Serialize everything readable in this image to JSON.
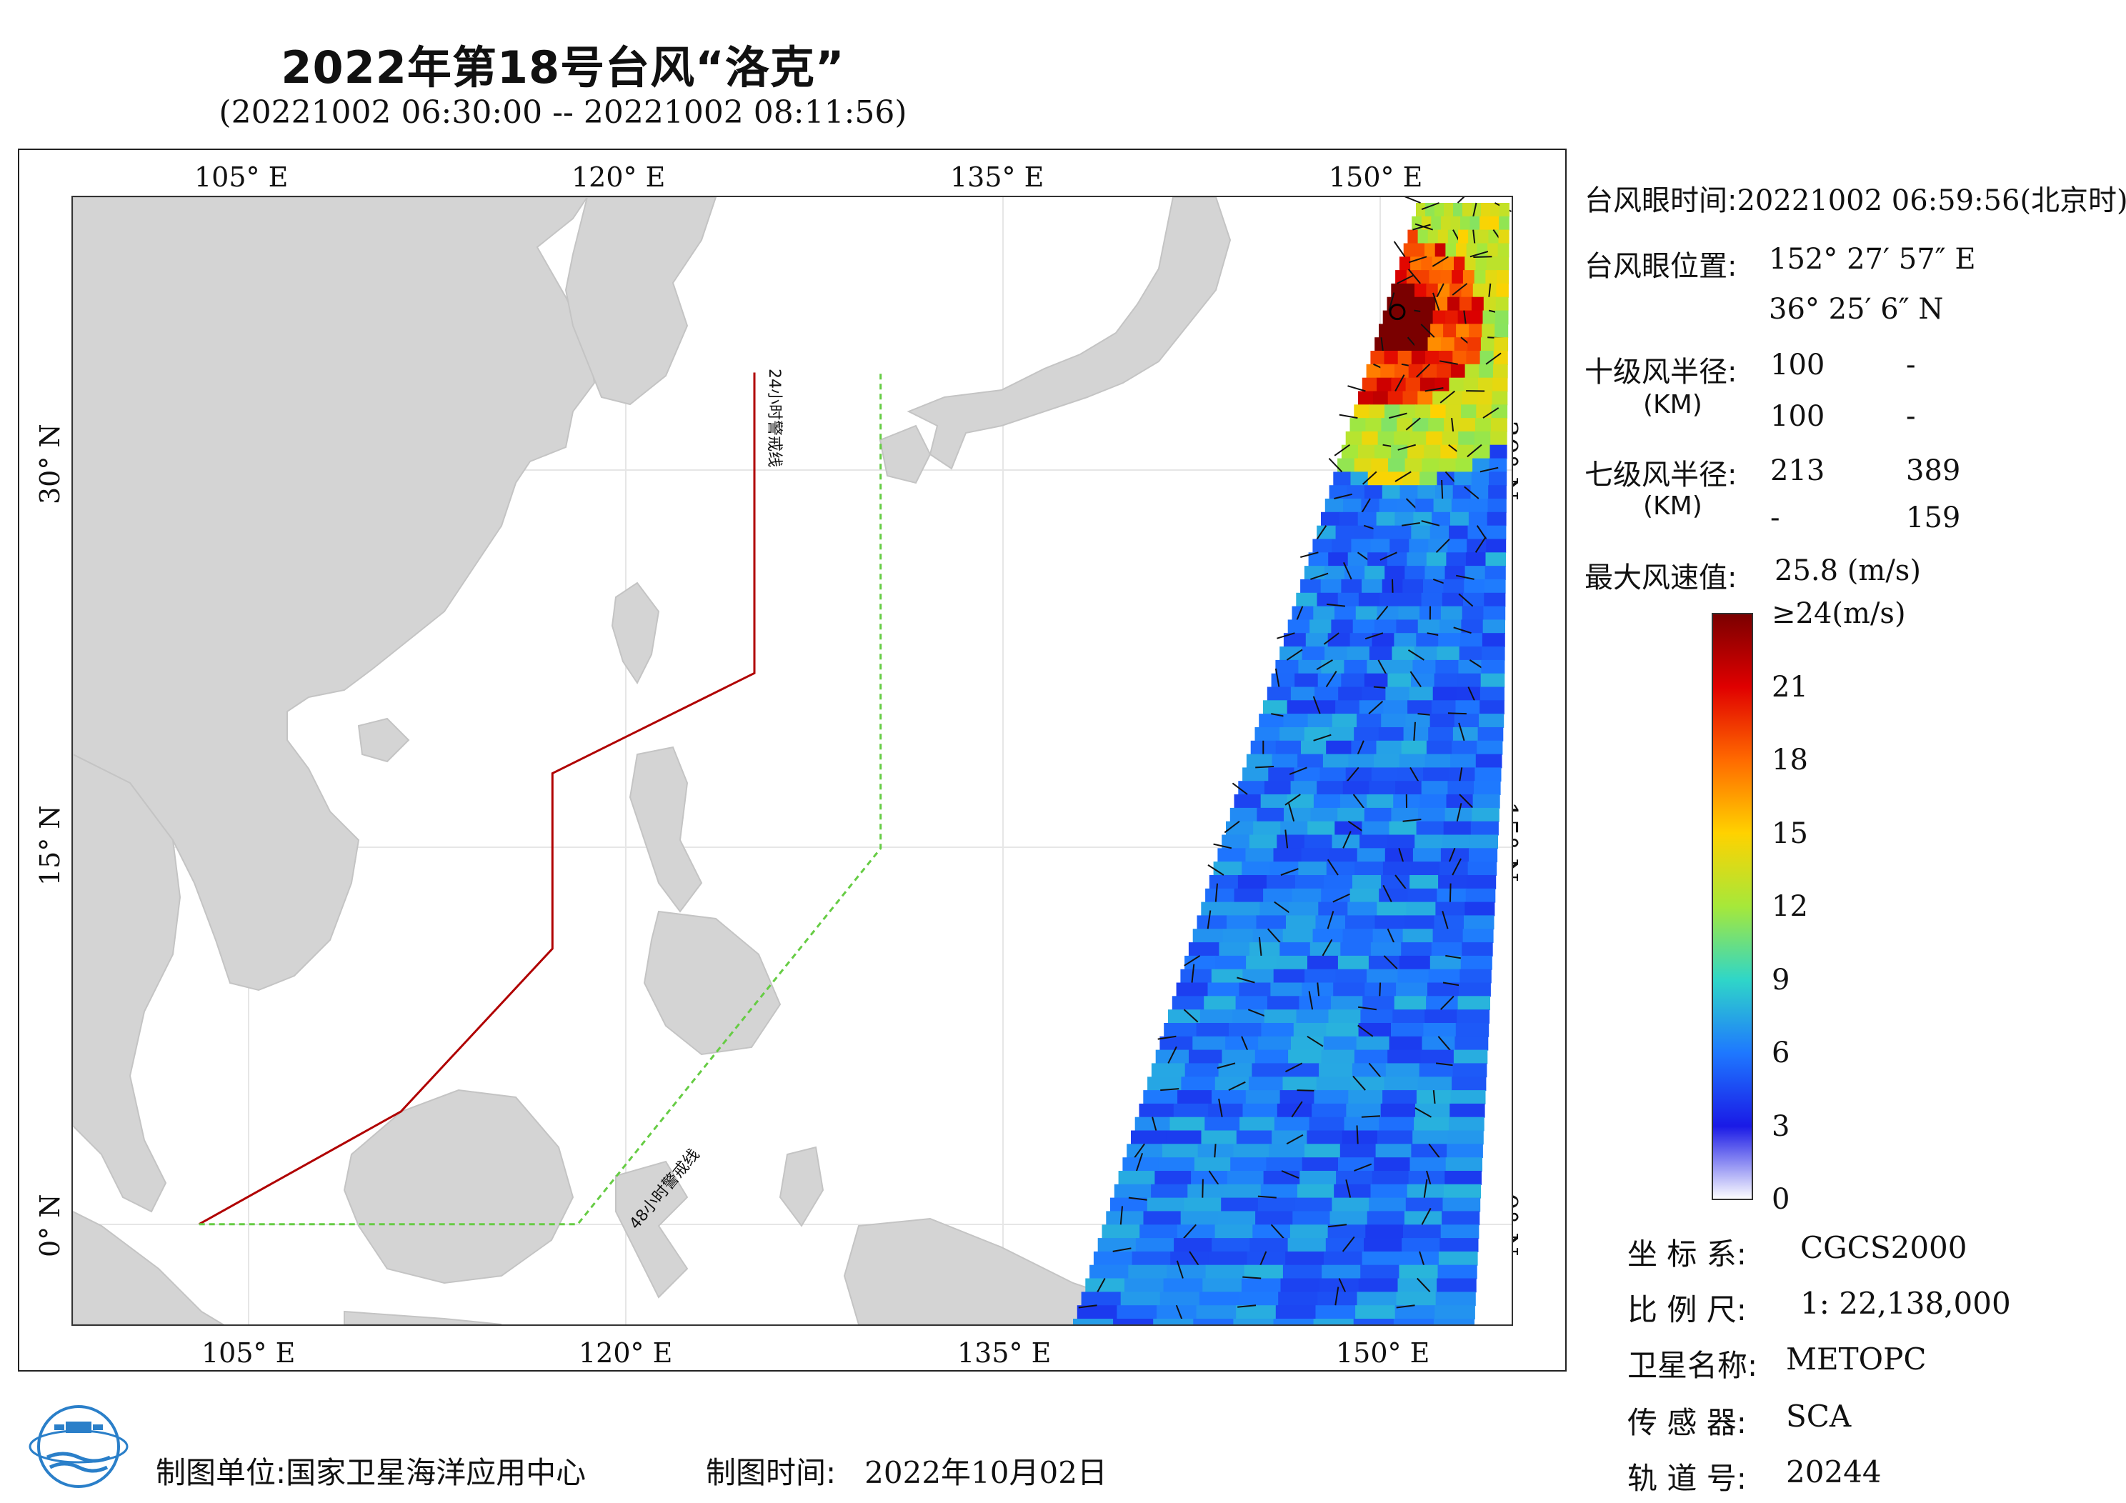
{
  "header": {
    "title": "2022年第18号台风“洛克”",
    "subtitle": "(20221002 06:30:00 -- 20221002 08:11:56)"
  },
  "map": {
    "lon_range": [
      100,
      157
    ],
    "lat_range": [
      -4,
      41
    ],
    "x_ticks": [
      {
        "lon": 105,
        "label": "105° E"
      },
      {
        "lon": 120,
        "label": "120° E"
      },
      {
        "lon": 135,
        "label": "135° E"
      },
      {
        "lon": 150,
        "label": "150° E"
      }
    ],
    "y_ticks": [
      {
        "lat": 0,
        "label": "0° N"
      },
      {
        "lat": 15,
        "label": "15° N"
      },
      {
        "lat": 30,
        "label": "30° N"
      }
    ],
    "land_color": "#d4d4d4",
    "warning_24h": {
      "label": "24小时警戒线",
      "color": "#b00000",
      "path": [
        [
          105,
          0
        ],
        [
          113,
          4.5
        ],
        [
          119,
          11
        ],
        [
          119,
          18
        ],
        [
          127,
          22
        ],
        [
          127,
          34
        ]
      ]
    },
    "warning_48h": {
      "label": "48小时警戒线",
      "color": "#66cc44",
      "path": [
        [
          105,
          0
        ],
        [
          120,
          0
        ],
        [
          132,
          15
        ],
        [
          132,
          34
        ]
      ]
    },
    "typhoon_eye": {
      "lon": 152.47,
      "lat": 36.42
    }
  },
  "info": {
    "eye_time_label": "台风眼时间:",
    "eye_time_value": "20221002 06:59:56(北京时)",
    "eye_pos_label": "台风眼位置:",
    "eye_lon": "152° 27′ 57″ E",
    "eye_lat": "36° 25′ 6″ N",
    "r10_label": "十级风半径:",
    "r10_unit": "(KM)",
    "r10_values": [
      [
        "100",
        "-"
      ],
      [
        "100",
        "-"
      ]
    ],
    "r7_label": "七级风半径:",
    "r7_unit": "(KM)",
    "r7_values": [
      [
        "213",
        "389"
      ],
      [
        "-",
        "159"
      ]
    ],
    "max_wind_label": "最大风速值:",
    "max_wind_value": "25.8  (m/s)"
  },
  "colorbar": {
    "labels": [
      "≥24(m/s)",
      "21",
      "18",
      "15",
      "12",
      "9",
      "6",
      "3",
      "0"
    ],
    "values": [
      24,
      21,
      18,
      15,
      12,
      9,
      6,
      3,
      0
    ],
    "colors": [
      "#7a0000",
      "#e00000",
      "#ff6a00",
      "#ffd200",
      "#a6e83a",
      "#2fd6c8",
      "#1e78ff",
      "#1a1ae6",
      "#ffffff"
    ]
  },
  "meta": {
    "crs_label": "坐 标 系:",
    "crs_value": "CGCS2000",
    "scale_label": "比 例 尺:",
    "scale_value": "1: 22,138,000",
    "satellite_label": "卫星名称:",
    "satellite_value": "METOPC",
    "sensor_label": "传 感 器:",
    "sensor_value": "SCA",
    "orbit_label": "轨 道 号:",
    "orbit_value": "20244"
  },
  "footer": {
    "maker_label": "制图单位:",
    "maker_value": "国家卫星海洋应用中心",
    "date_label": "制图时间:",
    "date_value": "2022年10月02日"
  }
}
